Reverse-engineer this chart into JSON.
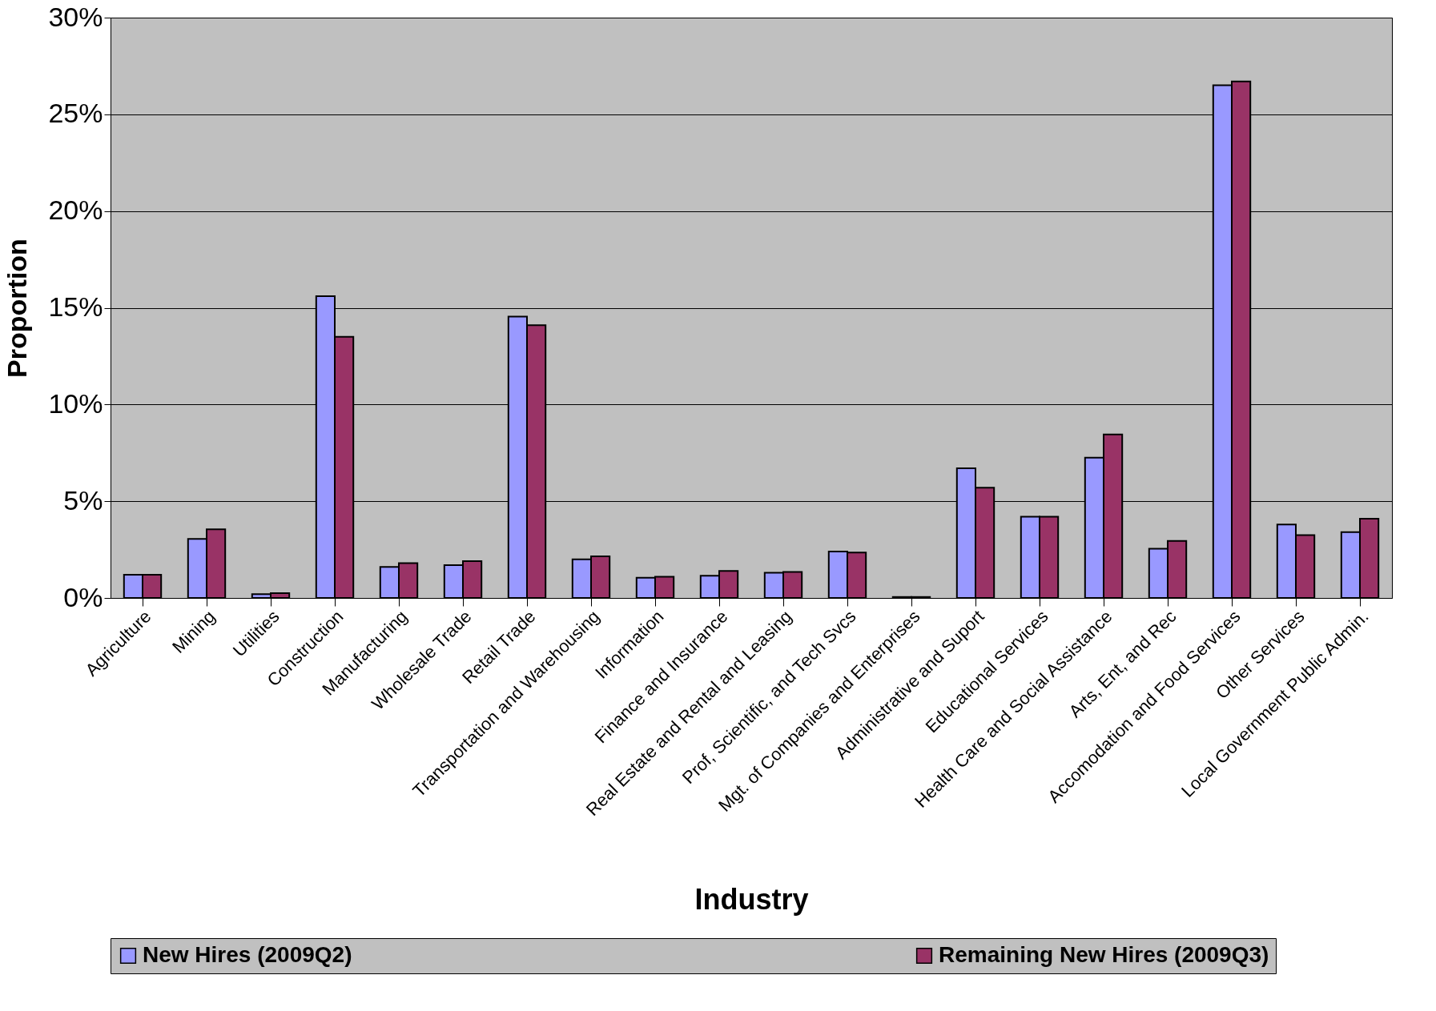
{
  "chart_data": {
    "type": "bar",
    "xlabel": "Industry",
    "ylabel": "Proportion",
    "categories": [
      "Agriculture",
      "Mining",
      "Utilities",
      "Construction",
      "Manufacturing",
      "Wholesale Trade",
      "Retail Trade",
      "Transportation and Warehousing",
      "Information",
      "Finance and Insurance",
      "Real Estate and Rental and Leasing",
      "Prof, Scientific, and Tech Svcs",
      "Mgt. of Companies and Enterprises",
      "Administrative and Suport",
      "Educational Services",
      "Health Care and Social Assistance",
      "Arts, Ent, and Rec",
      "Accomodation and Food Services",
      "Other Services",
      "Local Government Public Admin."
    ],
    "series": [
      {
        "name": "New Hires (2009Q2)",
        "color": "#9999ff",
        "values": [
          1.2,
          3.05,
          0.2,
          15.6,
          1.6,
          1.7,
          14.55,
          2.0,
          1.05,
          1.15,
          1.3,
          2.4,
          0.05,
          6.7,
          4.2,
          7.25,
          2.55,
          26.5,
          3.8,
          3.4
        ]
      },
      {
        "name": "Remaining New Hires (2009Q3)",
        "color": "#993366",
        "values": [
          1.2,
          3.55,
          0.25,
          13.5,
          1.8,
          1.9,
          14.1,
          2.15,
          1.1,
          1.4,
          1.35,
          2.35,
          0.05,
          5.7,
          4.2,
          8.45,
          2.95,
          26.7,
          3.25,
          4.1
        ]
      }
    ],
    "ylim": [
      0,
      30
    ],
    "yticks": [
      {
        "value": 0,
        "label": "0%"
      },
      {
        "value": 5,
        "label": "5%"
      },
      {
        "value": 10,
        "label": "10%"
      },
      {
        "value": 15,
        "label": "15%"
      },
      {
        "value": 20,
        "label": "20%"
      },
      {
        "value": 25,
        "label": "25%"
      },
      {
        "value": 30,
        "label": "30%"
      }
    ],
    "grid": "y",
    "legend": "bottom"
  }
}
